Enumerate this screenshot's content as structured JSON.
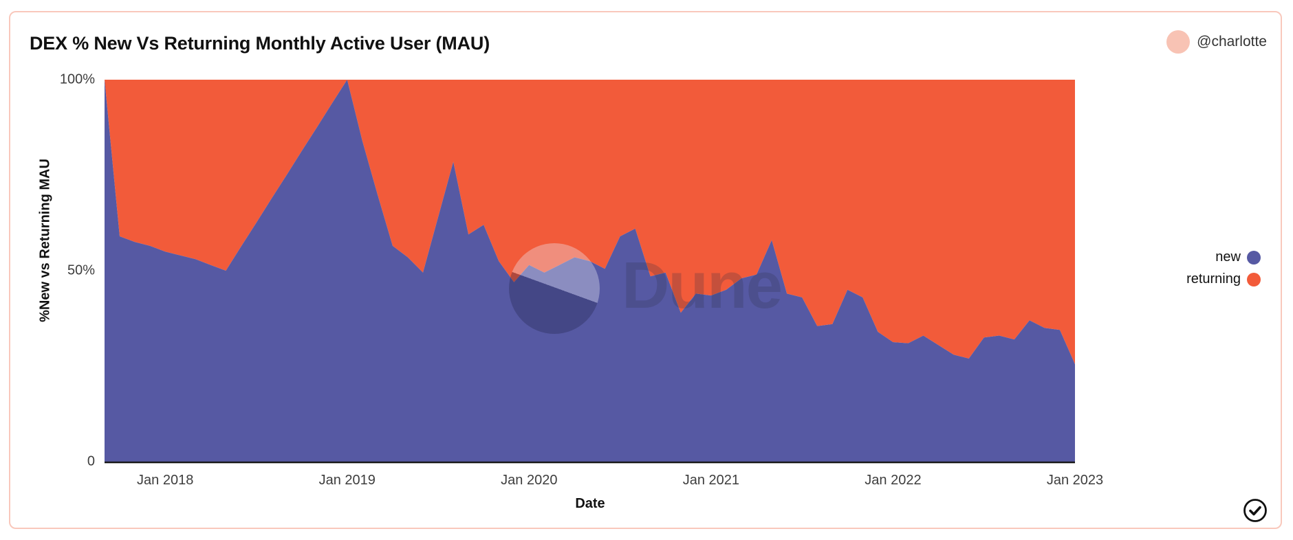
{
  "header": {
    "title": "DEX % New Vs Returning Monthly Active User (MAU)",
    "author": "@charlotte"
  },
  "watermark": {
    "text": "Dune"
  },
  "icons": {
    "check": "check-circle"
  },
  "colors": {
    "new": "#5659a3",
    "returning": "#f25b3a",
    "card_border": "#f9c8bc",
    "avatar": "#f8c3b4",
    "axis_line": "#1a1a1a"
  },
  "legend": {
    "items": [
      {
        "label": "new",
        "color": "#5659a3"
      },
      {
        "label": "returning",
        "color": "#f25b3a"
      }
    ]
  },
  "chart_data": {
    "type": "area",
    "stacked": true,
    "stack_total": 100,
    "title": "DEX % New Vs Returning Monthly Active User (MAU)",
    "xlabel": "Date",
    "ylabel": "%New vs Returning MAU",
    "grid": false,
    "legend_position": "right",
    "ylim": [
      0,
      100
    ],
    "y_ticks": [
      {
        "label": "100%",
        "value": 100
      },
      {
        "label": "50%",
        "value": 50
      },
      {
        "label": "0",
        "value": 0
      }
    ],
    "x_ticks": [
      {
        "label": "Jan 2018",
        "index": 4
      },
      {
        "label": "Jan 2019",
        "index": 16
      },
      {
        "label": "Jan 2020",
        "index": 28
      },
      {
        "label": "Jan 2021",
        "index": 40
      },
      {
        "label": "Jan 2022",
        "index": 52
      },
      {
        "label": "Jan 2023",
        "index": 64
      }
    ],
    "categories": [
      "2017-09",
      "2017-10",
      "2017-11",
      "2017-12",
      "2018-01",
      "2018-02",
      "2018-03",
      "2018-04",
      "2018-05",
      "2018-06",
      "2018-07",
      "2018-08",
      "2018-09",
      "2018-10",
      "2018-11",
      "2018-12",
      "2019-01",
      "2019-02",
      "2019-03",
      "2019-04",
      "2019-05",
      "2019-06",
      "2019-07",
      "2019-08",
      "2019-09",
      "2019-10",
      "2019-11",
      "2019-12",
      "2020-01",
      "2020-02",
      "2020-03",
      "2020-04",
      "2020-05",
      "2020-06",
      "2020-07",
      "2020-08",
      "2020-09",
      "2020-10",
      "2020-11",
      "2020-12",
      "2021-01",
      "2021-02",
      "2021-03",
      "2021-04",
      "2021-05",
      "2021-06",
      "2021-07",
      "2021-08",
      "2021-09",
      "2021-10",
      "2021-11",
      "2021-12",
      "2022-01",
      "2022-02",
      "2022-03",
      "2022-04",
      "2022-05",
      "2022-06",
      "2022-07",
      "2022-08",
      "2022-09",
      "2022-10",
      "2022-11",
      "2022-12",
      "2023-01"
    ],
    "series": [
      {
        "name": "new",
        "color": "#5659a3",
        "values": [
          100,
          59,
          57.5,
          56.5,
          55,
          54,
          53,
          51.5,
          50,
          56.3,
          62.5,
          68.8,
          75,
          81.3,
          87.5,
          93.8,
          100,
          84,
          70,
          56.5,
          53.5,
          49.5,
          64,
          78.5,
          59.5,
          62,
          52.5,
          47,
          51.5,
          49.5,
          51.5,
          53.5,
          52.5,
          50.5,
          59,
          61,
          48.5,
          49.5,
          39,
          44,
          43.5,
          45,
          48,
          49,
          58,
          44,
          43,
          35.5,
          36,
          45,
          43,
          34,
          31.3,
          31,
          33,
          30.5,
          28,
          27,
          32.5,
          33,
          32,
          37,
          35,
          34.5,
          25.5
        ]
      },
      {
        "name": "returning",
        "color": "#f25b3a",
        "values": [
          0,
          41,
          42.5,
          43.5,
          45,
          46,
          47,
          48.5,
          50,
          43.7,
          37.5,
          31.2,
          25,
          18.7,
          12.5,
          6.2,
          0,
          16,
          30,
          43.5,
          46.5,
          50.5,
          36,
          21.5,
          40.5,
          38,
          47.5,
          53,
          48.5,
          50.5,
          48.5,
          46.5,
          47.5,
          49.5,
          41,
          39,
          51.5,
          50.5,
          61,
          56,
          56.5,
          55,
          52,
          51,
          42,
          56,
          57,
          64.5,
          64,
          55,
          57,
          66,
          68.7,
          69,
          67,
          69.5,
          72,
          73,
          67.5,
          67,
          68,
          63,
          65,
          65.5,
          74.5
        ]
      }
    ]
  }
}
